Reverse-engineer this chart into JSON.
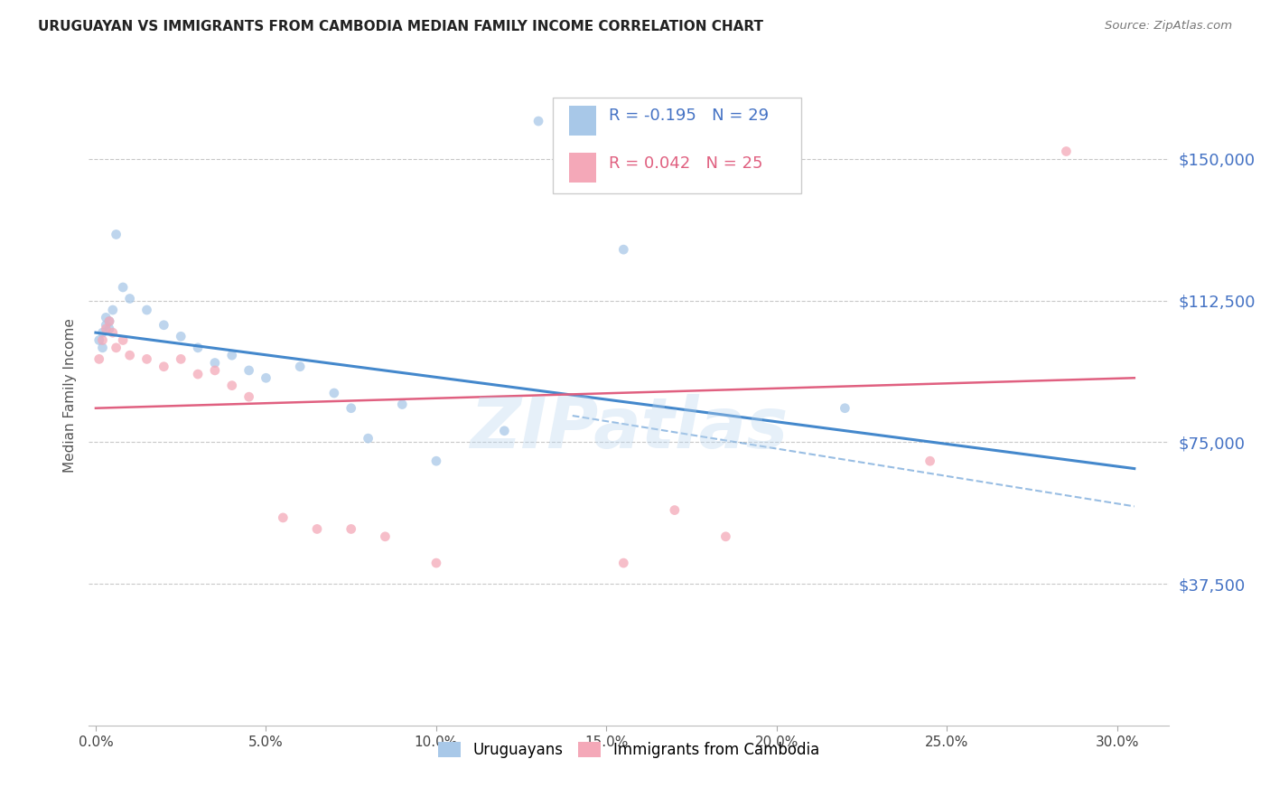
{
  "title": "URUGUAYAN VS IMMIGRANTS FROM CAMBODIA MEDIAN FAMILY INCOME CORRELATION CHART",
  "source": "Source: ZipAtlas.com",
  "ylabel": "Median Family Income",
  "xlabel_ticks": [
    "0.0%",
    "5.0%",
    "10.0%",
    "15.0%",
    "20.0%",
    "25.0%",
    "30.0%"
  ],
  "xlabel_vals": [
    0.0,
    0.05,
    0.1,
    0.15,
    0.2,
    0.25,
    0.3
  ],
  "ytick_labels": [
    "$37,500",
    "$75,000",
    "$112,500",
    "$150,000"
  ],
  "ytick_vals": [
    37500,
    75000,
    112500,
    150000
  ],
  "ymin": 0,
  "ymax": 175000,
  "xmin": -0.002,
  "xmax": 0.315,
  "legend_blue_r": "-0.195",
  "legend_blue_n": "29",
  "legend_pink_r": "0.042",
  "legend_pink_n": "25",
  "blue_color": "#a8c8e8",
  "pink_color": "#f4a8b8",
  "blue_line_color": "#4488cc",
  "pink_line_color": "#e06080",
  "blue_scatter": [
    [
      0.001,
      102000
    ],
    [
      0.002,
      104000
    ],
    [
      0.002,
      100000
    ],
    [
      0.003,
      106000
    ],
    [
      0.003,
      108000
    ],
    [
      0.004,
      105000
    ],
    [
      0.004,
      107000
    ],
    [
      0.005,
      110000
    ],
    [
      0.006,
      130000
    ],
    [
      0.008,
      116000
    ],
    [
      0.01,
      113000
    ],
    [
      0.015,
      110000
    ],
    [
      0.02,
      106000
    ],
    [
      0.025,
      103000
    ],
    [
      0.03,
      100000
    ],
    [
      0.035,
      96000
    ],
    [
      0.04,
      98000
    ],
    [
      0.045,
      94000
    ],
    [
      0.05,
      92000
    ],
    [
      0.06,
      95000
    ],
    [
      0.07,
      88000
    ],
    [
      0.075,
      84000
    ],
    [
      0.08,
      76000
    ],
    [
      0.09,
      85000
    ],
    [
      0.1,
      70000
    ],
    [
      0.12,
      78000
    ],
    [
      0.13,
      160000
    ],
    [
      0.155,
      126000
    ],
    [
      0.22,
      84000
    ]
  ],
  "pink_scatter": [
    [
      0.001,
      97000
    ],
    [
      0.002,
      102000
    ],
    [
      0.003,
      105000
    ],
    [
      0.004,
      107000
    ],
    [
      0.005,
      104000
    ],
    [
      0.006,
      100000
    ],
    [
      0.008,
      102000
    ],
    [
      0.01,
      98000
    ],
    [
      0.015,
      97000
    ],
    [
      0.02,
      95000
    ],
    [
      0.025,
      97000
    ],
    [
      0.03,
      93000
    ],
    [
      0.035,
      94000
    ],
    [
      0.04,
      90000
    ],
    [
      0.045,
      87000
    ],
    [
      0.055,
      55000
    ],
    [
      0.065,
      52000
    ],
    [
      0.075,
      52000
    ],
    [
      0.085,
      50000
    ],
    [
      0.1,
      43000
    ],
    [
      0.155,
      43000
    ],
    [
      0.17,
      57000
    ],
    [
      0.185,
      50000
    ],
    [
      0.245,
      70000
    ],
    [
      0.285,
      152000
    ]
  ],
  "blue_line": [
    [
      0.0,
      104000
    ],
    [
      0.305,
      68000
    ]
  ],
  "blue_dash_line": [
    [
      0.0,
      104000
    ],
    [
      0.305,
      68000
    ]
  ],
  "pink_line": [
    [
      0.0,
      84000
    ],
    [
      0.305,
      92000
    ]
  ],
  "watermark": "ZIPatlas",
  "background_color": "#ffffff",
  "grid_color": "#c8c8c8"
}
